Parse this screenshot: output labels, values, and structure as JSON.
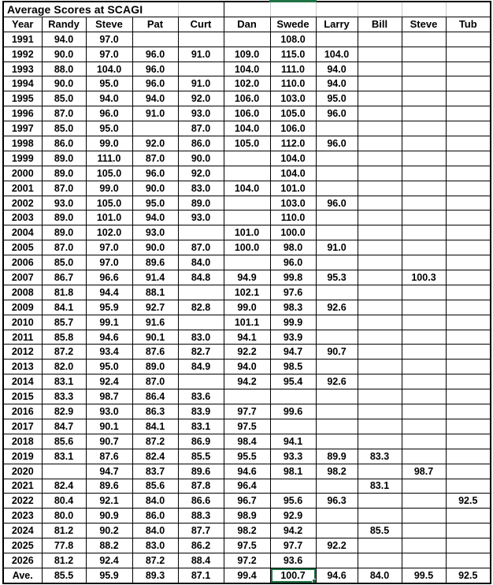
{
  "title": "Average Scores at SCAGI",
  "table": {
    "columns": [
      "Year",
      "Randy",
      "Steve",
      "Pat",
      "Curt",
      "Dan",
      "Swede",
      "Larry",
      "Bill",
      "Steve",
      "Tub"
    ],
    "rows": [
      [
        "1991",
        "94.0",
        "97.0",
        "",
        "",
        "",
        "108.0",
        "",
        "",
        "",
        ""
      ],
      [
        "1992",
        "90.0",
        "97.0",
        "96.0",
        "91.0",
        "109.0",
        "115.0",
        "104.0",
        "",
        "",
        ""
      ],
      [
        "1993",
        "88.0",
        "104.0",
        "96.0",
        "",
        "104.0",
        "111.0",
        "94.0",
        "",
        "",
        ""
      ],
      [
        "1994",
        "90.0",
        "95.0",
        "96.0",
        "91.0",
        "102.0",
        "110.0",
        "94.0",
        "",
        "",
        ""
      ],
      [
        "1995",
        "85.0",
        "94.0",
        "94.0",
        "92.0",
        "106.0",
        "103.0",
        "95.0",
        "",
        "",
        ""
      ],
      [
        "1996",
        "87.0",
        "96.0",
        "91.0",
        "93.0",
        "106.0",
        "105.0",
        "96.0",
        "",
        "",
        ""
      ],
      [
        "1997",
        "85.0",
        "95.0",
        "",
        "87.0",
        "104.0",
        "106.0",
        "",
        "",
        "",
        ""
      ],
      [
        "1998",
        "86.0",
        "99.0",
        "92.0",
        "86.0",
        "105.0",
        "112.0",
        "96.0",
        "",
        "",
        ""
      ],
      [
        "1999",
        "89.0",
        "111.0",
        "87.0",
        "90.0",
        "",
        "104.0",
        "",
        "",
        "",
        ""
      ],
      [
        "2000",
        "89.0",
        "105.0",
        "96.0",
        "92.0",
        "",
        "104.0",
        "",
        "",
        "",
        ""
      ],
      [
        "2001",
        "87.0",
        "99.0",
        "90.0",
        "83.0",
        "104.0",
        "101.0",
        "",
        "",
        "",
        ""
      ],
      [
        "2002",
        "93.0",
        "105.0",
        "95.0",
        "89.0",
        "",
        "103.0",
        "96.0",
        "",
        "",
        ""
      ],
      [
        "2003",
        "89.0",
        "101.0",
        "94.0",
        "93.0",
        "",
        "110.0",
        "",
        "",
        "",
        ""
      ],
      [
        "2004",
        "89.0",
        "102.0",
        "93.0",
        "",
        "101.0",
        "100.0",
        "",
        "",
        "",
        ""
      ],
      [
        "2005",
        "87.0",
        "97.0",
        "90.0",
        "87.0",
        "100.0",
        "98.0",
        "91.0",
        "",
        "",
        ""
      ],
      [
        "2006",
        "85.0",
        "97.0",
        "89.6",
        "84.0",
        "",
        "96.0",
        "",
        "",
        "",
        ""
      ],
      [
        "2007",
        "86.7",
        "96.6",
        "91.4",
        "84.8",
        "94.9",
        "99.8",
        "95.3",
        "",
        "100.3",
        ""
      ],
      [
        "2008",
        "81.8",
        "94.4",
        "88.1",
        "",
        "102.1",
        "97.6",
        "",
        "",
        "",
        ""
      ],
      [
        "2009",
        "84.1",
        "95.9",
        "92.7",
        "82.8",
        "99.0",
        "98.3",
        "92.6",
        "",
        "",
        ""
      ],
      [
        "2010",
        "85.7",
        "99.1",
        "91.6",
        "",
        "101.1",
        "99.9",
        "",
        "",
        "",
        ""
      ],
      [
        "2011",
        "85.8",
        "94.6",
        "90.1",
        "83.0",
        "94.1",
        "93.9",
        "",
        "",
        "",
        ""
      ],
      [
        "2012",
        "87.2",
        "93.4",
        "87.6",
        "82.7",
        "92.2",
        "94.7",
        "90.7",
        "",
        "",
        ""
      ],
      [
        "2013",
        "82.0",
        "95.0",
        "89.0",
        "84.9",
        "94.0",
        "98.5",
        "",
        "",
        "",
        ""
      ],
      [
        "2014",
        "83.1",
        "92.4",
        "87.0",
        "",
        "94.2",
        "95.4",
        "92.6",
        "",
        "",
        ""
      ],
      [
        "2015",
        "83.3",
        "98.7",
        "86.4",
        "83.6",
        "",
        "",
        "",
        "",
        "",
        ""
      ],
      [
        "2016",
        "82.9",
        "93.0",
        "86.3",
        "83.9",
        "97.7",
        "99.6",
        "",
        "",
        "",
        ""
      ],
      [
        "2017",
        "84.7",
        "90.1",
        "84.1",
        "83.1",
        "97.5",
        "",
        "",
        "",
        "",
        ""
      ],
      [
        "2018",
        "85.6",
        "90.7",
        "87.2",
        "86.9",
        "98.4",
        "94.1",
        "",
        "",
        "",
        ""
      ],
      [
        "2019",
        "83.1",
        "87.6",
        "82.4",
        "85.5",
        "95.5",
        "93.3",
        "89.9",
        "83.3",
        "",
        ""
      ],
      [
        "2020",
        "",
        "94.7",
        "83.7",
        "89.6",
        "94.6",
        "98.1",
        "98.2",
        "",
        "98.7",
        ""
      ],
      [
        "2021",
        "82.4",
        "89.6",
        "85.6",
        "87.8",
        "96.4",
        "",
        "",
        "83.1",
        "",
        ""
      ],
      [
        "2022",
        "80.4",
        "92.1",
        "84.0",
        "86.6",
        "96.7",
        "95.6",
        "96.3",
        "",
        "",
        "92.5"
      ],
      [
        "2023",
        "80.0",
        "90.9",
        "86.0",
        "88.3",
        "98.9",
        "92.9",
        "",
        "",
        "",
        ""
      ],
      [
        "2024",
        "81.2",
        "90.2",
        "84.0",
        "87.7",
        "98.2",
        "94.2",
        "",
        "85.5",
        "",
        ""
      ],
      [
        "2025",
        "77.8",
        "88.2",
        "83.0",
        "86.2",
        "97.5",
        "97.7",
        "92.2",
        "",
        "",
        ""
      ],
      [
        "2026",
        "81.2",
        "92.4",
        "87.2",
        "88.4",
        "97.2",
        "93.6",
        "",
        "",
        "",
        ""
      ],
      [
        "Ave.",
        "85.5",
        "95.9",
        "89.3",
        "87.1",
        "99.4",
        "100.7",
        "94.6",
        "84.0",
        "99.5",
        "92.5"
      ]
    ]
  },
  "selection": {
    "row_label": "Ave.",
    "column": "Swede",
    "value": "100.7"
  },
  "colors": {
    "selection_green": "#1F7244",
    "grid_black": "#000000",
    "gridline_gray": "#c9c9c9",
    "background": "#ffffff",
    "text": "#000000"
  }
}
